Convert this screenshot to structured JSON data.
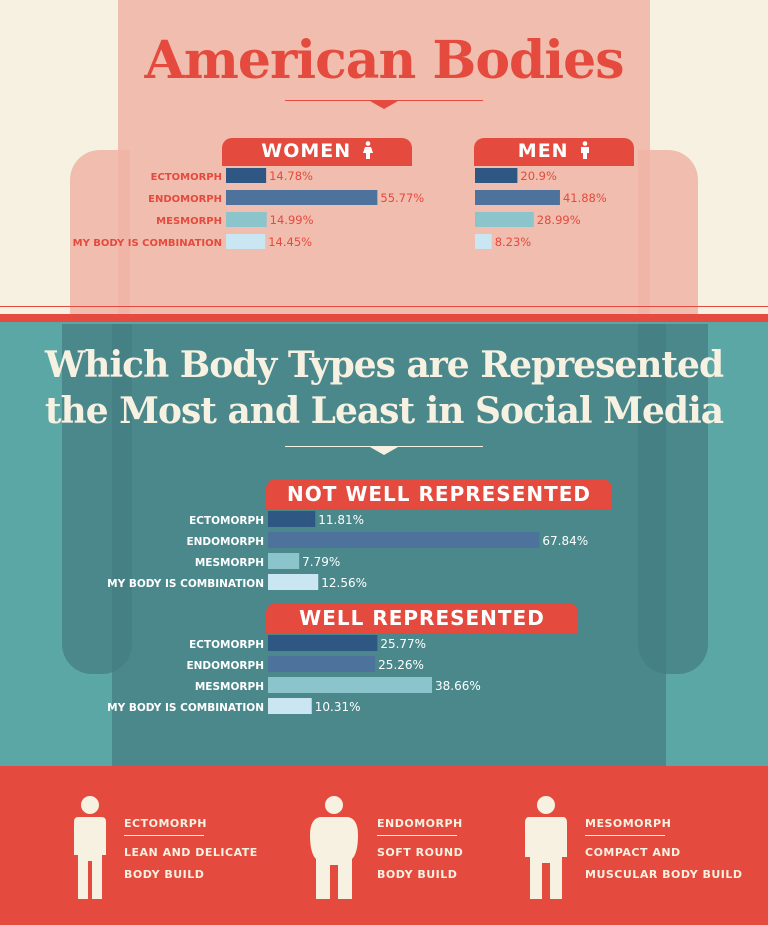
{
  "title": "American Bodies",
  "subtitle_line1": "Which Body Types are Represented",
  "subtitle_line2": "the Most and Least in Social Media",
  "colors": {
    "cream": "#f7f1e1",
    "red": "#e44a3d",
    "teal": "#5ba7a6",
    "ectomorph": "#2e5883",
    "endomorph": "#4d739c",
    "mesomorph": "#8cc4cb",
    "combination": "#c9e6f2"
  },
  "chart_data": [
    {
      "type": "bar",
      "title": "WOMEN",
      "categories": [
        "ECTOMORPH",
        "ENDOMORPH",
        "MESMORPH",
        "MY BODY IS COMBINATION"
      ],
      "values": [
        14.78,
        55.77,
        14.99,
        14.45
      ],
      "labels": [
        "14.78%",
        "55.77%",
        "14.99%",
        "14.45%"
      ],
      "unit": "%"
    },
    {
      "type": "bar",
      "title": "MEN",
      "categories": [
        "ECTOMORPH",
        "ENDOMORPH",
        "MESMORPH",
        "MY BODY IS COMBINATION"
      ],
      "values": [
        20.9,
        41.88,
        28.99,
        8.23
      ],
      "labels": [
        "20.9%",
        "41.88%",
        "28.99%",
        "8.23%"
      ],
      "unit": "%"
    },
    {
      "type": "bar",
      "title": "NOT WELL REPRESENTED",
      "categories": [
        "ECTOMORPH",
        "ENDOMORPH",
        "MESMORPH",
        "MY BODY IS COMBINATION"
      ],
      "values": [
        11.81,
        67.84,
        7.79,
        12.56
      ],
      "labels": [
        "11.81%",
        "67.84%",
        "7.79%",
        "12.56%"
      ],
      "unit": "%"
    },
    {
      "type": "bar",
      "title": "WELL REPRESENTED",
      "categories": [
        "ECTOMORPH",
        "ENDOMORPH",
        "MESMORPH",
        "MY BODY IS COMBINATION"
      ],
      "values": [
        25.77,
        25.26,
        38.66,
        10.31
      ],
      "labels": [
        "25.77%",
        "25.26%",
        "38.66%",
        "10.31%"
      ],
      "unit": "%"
    }
  ],
  "definitions": [
    {
      "name": "ECTOMORPH",
      "line1": "LEAN AND DELICATE",
      "line2": "BODY BUILD",
      "icon": "thin-figure-icon"
    },
    {
      "name": "ENDOMORPH",
      "line1": "SOFT ROUND",
      "line2": "BODY BUILD",
      "icon": "round-figure-icon"
    },
    {
      "name": "MESOMORPH",
      "line1": "COMPACT AND",
      "line2": "MUSCULAR BODY BUILD",
      "icon": "muscular-figure-icon"
    }
  ]
}
